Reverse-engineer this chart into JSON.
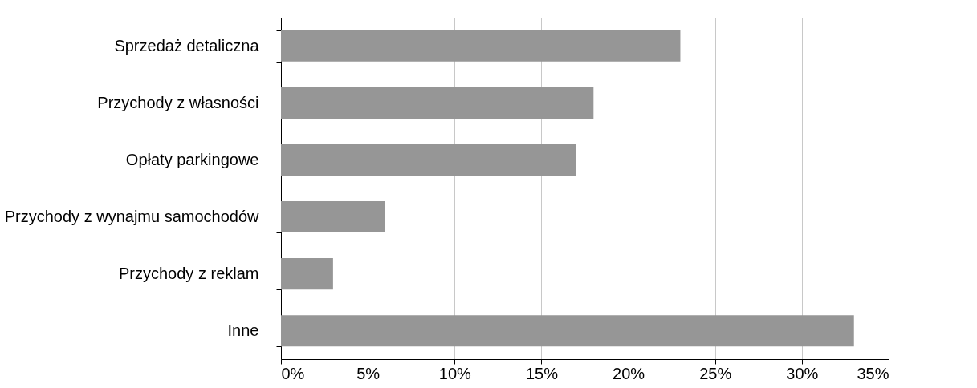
{
  "chart_data": {
    "type": "bar",
    "orientation": "horizontal",
    "categories": [
      "Sprzedaż detaliczna",
      "Przychody z własności",
      "Opłaty parkingowe",
      "Przychody z wynajmu samochodów",
      "Przychody z reklam",
      "Inne"
    ],
    "values": [
      23,
      18,
      17,
      6,
      3,
      33
    ],
    "color": "#969696",
    "xlim": [
      0,
      35
    ],
    "xticks": [
      {
        "value": 0,
        "label": "0%"
      },
      {
        "value": 5,
        "label": "5%"
      },
      {
        "value": 10,
        "label": "10%"
      },
      {
        "value": 15,
        "label": "15%"
      },
      {
        "value": 20,
        "label": "20%"
      },
      {
        "value": 25,
        "label": "25%"
      },
      {
        "value": 30,
        "label": "30%"
      },
      {
        "value": 35,
        "label": "35%"
      }
    ],
    "grid": "x"
  }
}
